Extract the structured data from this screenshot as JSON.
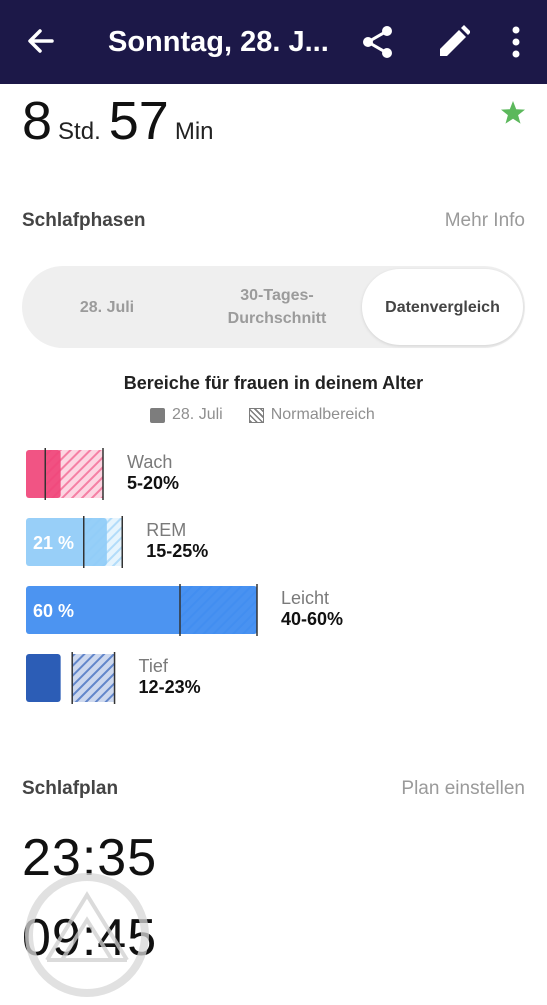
{
  "header": {
    "title": "Sonntag, 28. J...",
    "icons": {
      "back": "arrow-left-icon",
      "share": "share-icon",
      "edit": "pencil-icon",
      "more": "more-vert-icon"
    },
    "background": "#1c1848"
  },
  "duration": {
    "hours": "8",
    "hours_unit": "Std.",
    "minutes": "57",
    "minutes_unit": "Min",
    "star_icon": "star-icon",
    "star_color": "#5cb85c"
  },
  "phases_section": {
    "title": "Schlafphasen",
    "link": "Mehr Info"
  },
  "tabs": [
    {
      "label": "28. Juli",
      "selected": false
    },
    {
      "label_line1": "30-Tages-",
      "label_line2": "Durchschnitt",
      "selected": false
    },
    {
      "label": "Datenvergleich",
      "selected": true
    }
  ],
  "comparison": {
    "title": "Bereiche für frauen in deinem Alter",
    "legend_actual": "28. Juli",
    "legend_range": "Normalbereich"
  },
  "chart_data": {
    "type": "bar",
    "orientation": "horizontal",
    "categories": [
      "Wach",
      "REM",
      "Leicht",
      "Tief"
    ],
    "actual_percent": [
      9,
      21,
      60,
      9
    ],
    "actual_labels": [
      "",
      "21 %",
      "60 %",
      ""
    ],
    "normal_range": [
      [
        5,
        20
      ],
      [
        15,
        25
      ],
      [
        40,
        60
      ],
      [
        12,
        23
      ]
    ],
    "range_labels": [
      "5-20%",
      "15-25%",
      "40-60%",
      "12-23%"
    ],
    "colors": {
      "Wach": "#f0457a",
      "REM": "#8fcbf7",
      "Leicht": "#3d8bf0",
      "Tief": "#1a4fb0"
    }
  },
  "plan_section": {
    "title": "Schlafplan",
    "link": "Plan einstellen"
  },
  "schedule": {
    "bedtime": "23:35",
    "wake": "09:45"
  }
}
